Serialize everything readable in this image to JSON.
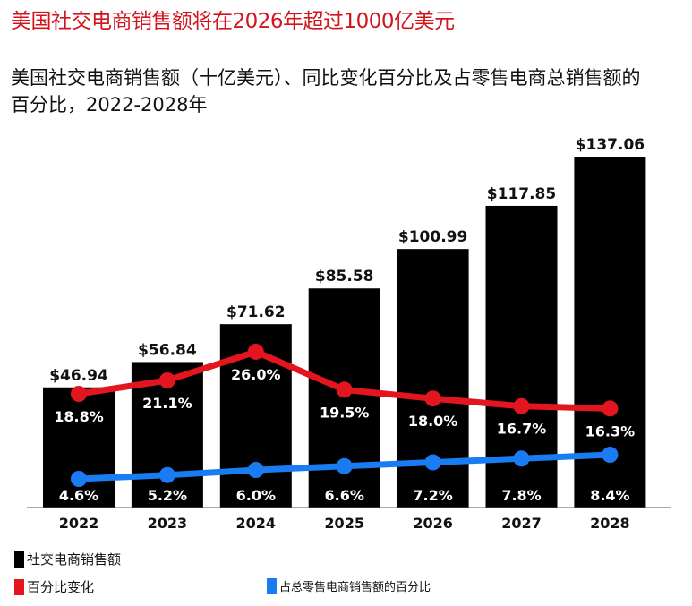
{
  "headline": "美国社交电商销售额将在2026年超过1000亿美元",
  "chart_data": {
    "type": "bar",
    "title": "美国社交电商销售额（十亿美元）、同比变化百分比及占零售电商总销售额的百分比，2022-2028年",
    "categories": [
      "2022",
      "2023",
      "2024",
      "2025",
      "2026",
      "2027",
      "2028"
    ],
    "series": [
      {
        "name": "社交电商销售额",
        "type": "bar",
        "color": "#000000",
        "values": [
          46.94,
          56.84,
          71.62,
          85.58,
          100.99,
          117.85,
          137.06
        ],
        "labels": [
          "$46.94",
          "$56.84",
          "$71.62",
          "$85.58",
          "$100.99",
          "$117.85",
          "$137.06"
        ]
      },
      {
        "name": "百分比变化",
        "type": "line",
        "color": "#e3151f",
        "values": [
          18.8,
          21.1,
          26.0,
          19.5,
          18.0,
          16.7,
          16.3
        ],
        "labels": [
          "18.8%",
          "21.1%",
          "26.0%",
          "19.5%",
          "18.0%",
          "16.7%",
          "16.3%"
        ]
      },
      {
        "name": "占总零售电商销售额的百分比",
        "type": "line",
        "color": "#1a7cf2",
        "values": [
          4.6,
          5.2,
          6.0,
          6.6,
          7.2,
          7.8,
          8.4
        ],
        "labels": [
          "4.6%",
          "5.2%",
          "6.0%",
          "6.6%",
          "7.2%",
          "7.8%",
          "8.4%"
        ]
      }
    ],
    "grid": false,
    "legend_position": "bottom-left"
  },
  "legend": [
    "社交电商销售额",
    "百分比变化",
    "占总零售电商销售额的百分比"
  ]
}
